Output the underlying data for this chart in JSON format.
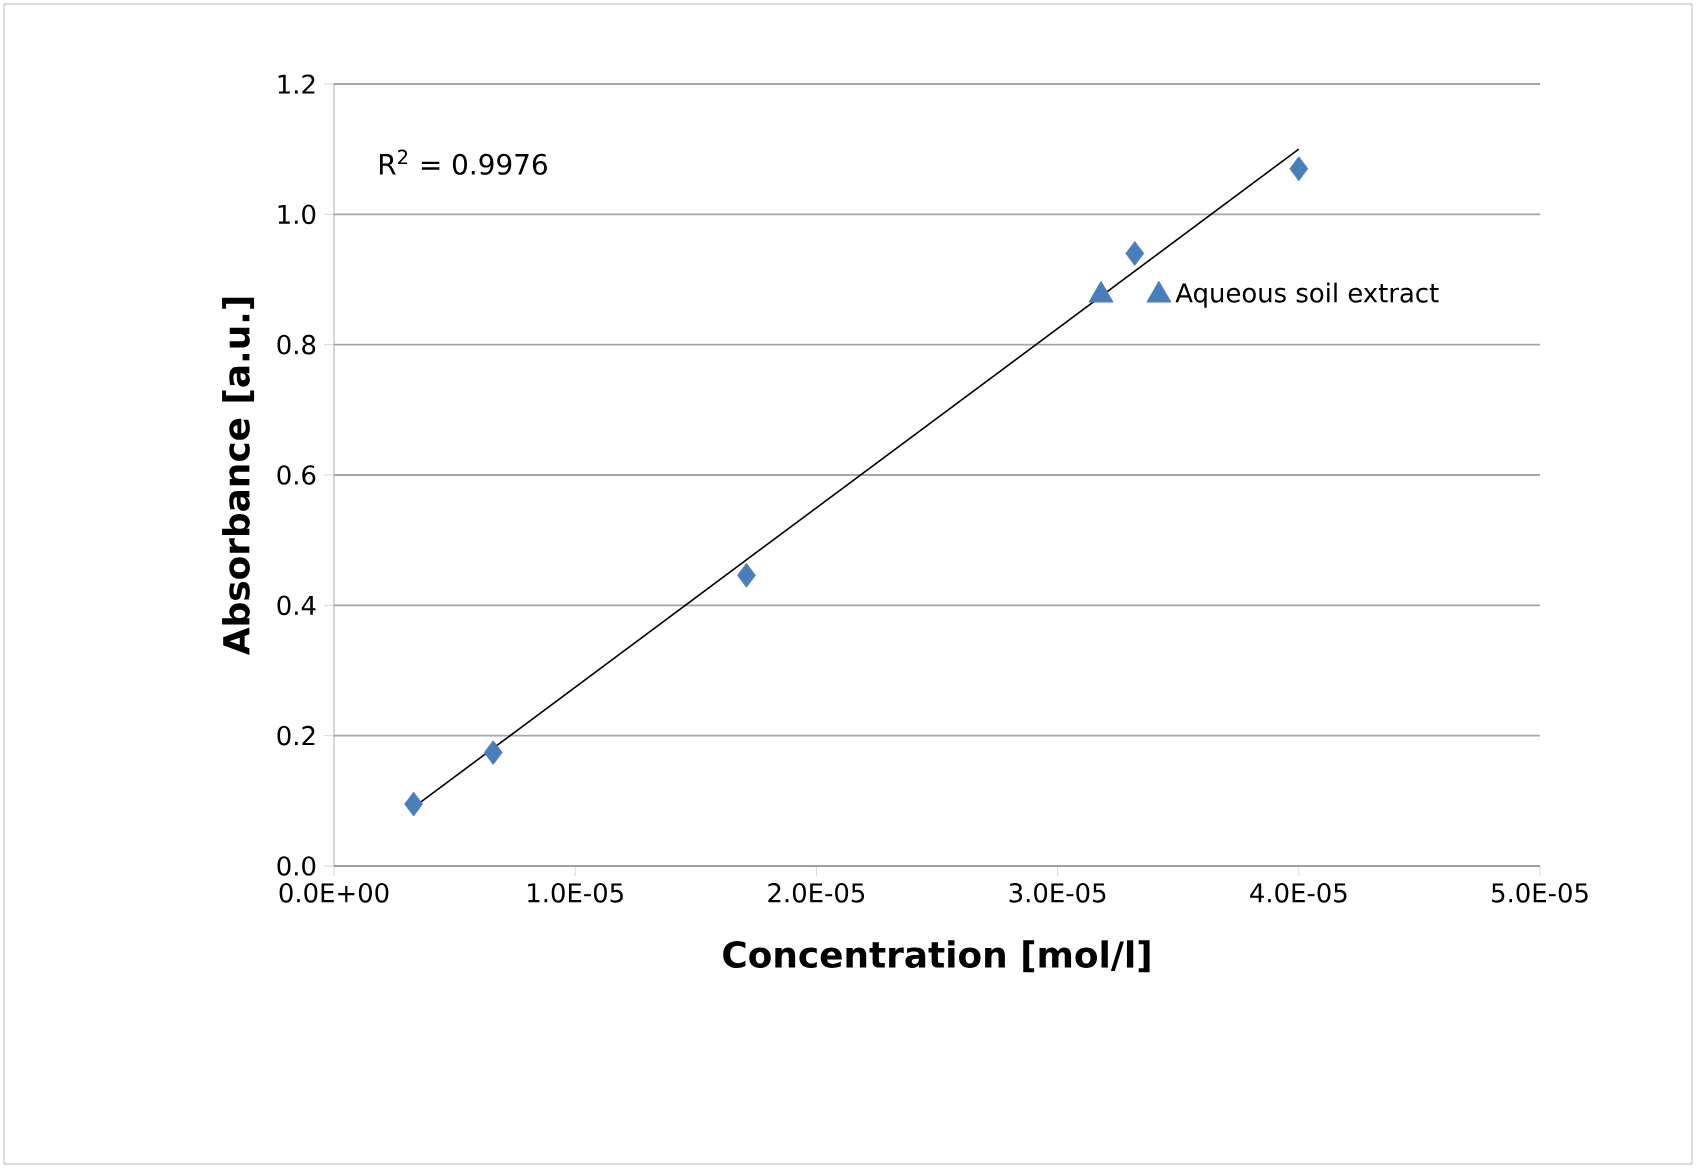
{
  "chart_data": {
    "type": "scatter",
    "xlabel": "Concentration [mol/l]",
    "ylabel": "Absorbance [a.u.]",
    "annotations": [
      "R$^{2}$ = 0.9976"
    ],
    "xlim": [
      0,
      5e-05
    ],
    "ylim": [
      0,
      1.2
    ],
    "xticks": [
      {
        "value": 0,
        "label": "0.0E+00"
      },
      {
        "value": 1e-05,
        "label": "1.0E-05"
      },
      {
        "value": 2e-05,
        "label": "2.0E-05"
      },
      {
        "value": 3e-05,
        "label": "3.0E-05"
      },
      {
        "value": 4e-05,
        "label": "4.0E-05"
      },
      {
        "value": 5e-05,
        "label": "5.0E-05"
      }
    ],
    "yticks": [
      {
        "value": 0,
        "label": "0.0"
      },
      {
        "value": 0.2,
        "label": "0.2"
      },
      {
        "value": 0.4,
        "label": "0.4"
      },
      {
        "value": 0.6,
        "label": "0.6"
      },
      {
        "value": 0.8,
        "label": "0.8"
      },
      {
        "value": 1.0,
        "label": "1.0"
      },
      {
        "value": 1.2,
        "label": "1.2"
      }
    ],
    "grid": "y",
    "series": [
      {
        "marker": "diamond",
        "color": "#4a7ebb",
        "x": [
          3.3e-06,
          6.6e-06,
          1.71e-05,
          3.32e-05,
          4e-05
        ],
        "values": [
          0.095,
          0.174,
          0.446,
          0.94,
          1.07
        ]
      },
      {
        "marker": "triangle",
        "name": "Aqueous soil extract",
        "color": "#4a7ebb",
        "x": [
          3.18e-05,
          3.42e-05
        ],
        "values": [
          0.876,
          0.876
        ]
      },
      {
        "type": "line",
        "marker": "none",
        "color": "#000000",
        "x": [
          3.3e-06,
          4e-05
        ],
        "values": [
          0.09,
          1.1
        ]
      }
    ]
  }
}
